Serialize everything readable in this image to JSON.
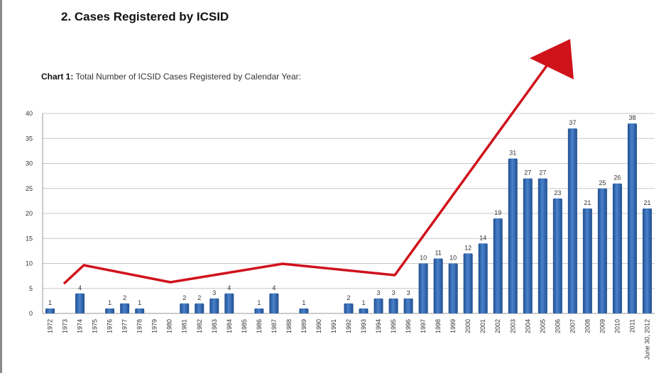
{
  "heading": "2.  Cases Registered by ICSID",
  "caption_prefix": "Chart 1:",
  "caption_text": " Total Number of ICSID Cases Registered by Calendar Year:",
  "chart_data": {
    "type": "bar",
    "title": "Chart 1: Total Number of ICSID Cases Registered by Calendar Year:",
    "categories": [
      "1972",
      "1973",
      "1974",
      "1975",
      "1976",
      "1977",
      "1978",
      "1979",
      "1980",
      "1981",
      "1982",
      "1983",
      "1984",
      "1985",
      "1986",
      "1987",
      "1988",
      "1989",
      "1990",
      "1991",
      "1992",
      "1993",
      "1994",
      "1995",
      "1996",
      "1997",
      "1998",
      "1999",
      "2000",
      "2001",
      "2002",
      "2003",
      "2004",
      "2005",
      "2006",
      "2007",
      "2008",
      "2009",
      "2010",
      "2011",
      "June 30, 2012"
    ],
    "values": [
      1,
      0,
      4,
      0,
      1,
      2,
      1,
      0,
      0,
      2,
      2,
      3,
      4,
      0,
      1,
      4,
      0,
      1,
      0,
      0,
      2,
      1,
      3,
      3,
      3,
      10,
      11,
      10,
      12,
      14,
      19,
      31,
      27,
      27,
      23,
      37,
      21,
      25,
      26,
      38,
      21
    ],
    "ylim": [
      0,
      40
    ],
    "yticks": [
      0,
      5,
      10,
      15,
      20,
      25,
      30,
      35,
      40
    ],
    "grid": true,
    "bar_color": "#2e62a8",
    "annotation": {
      "type": "trend-arrow",
      "color": "#d0121b"
    }
  }
}
